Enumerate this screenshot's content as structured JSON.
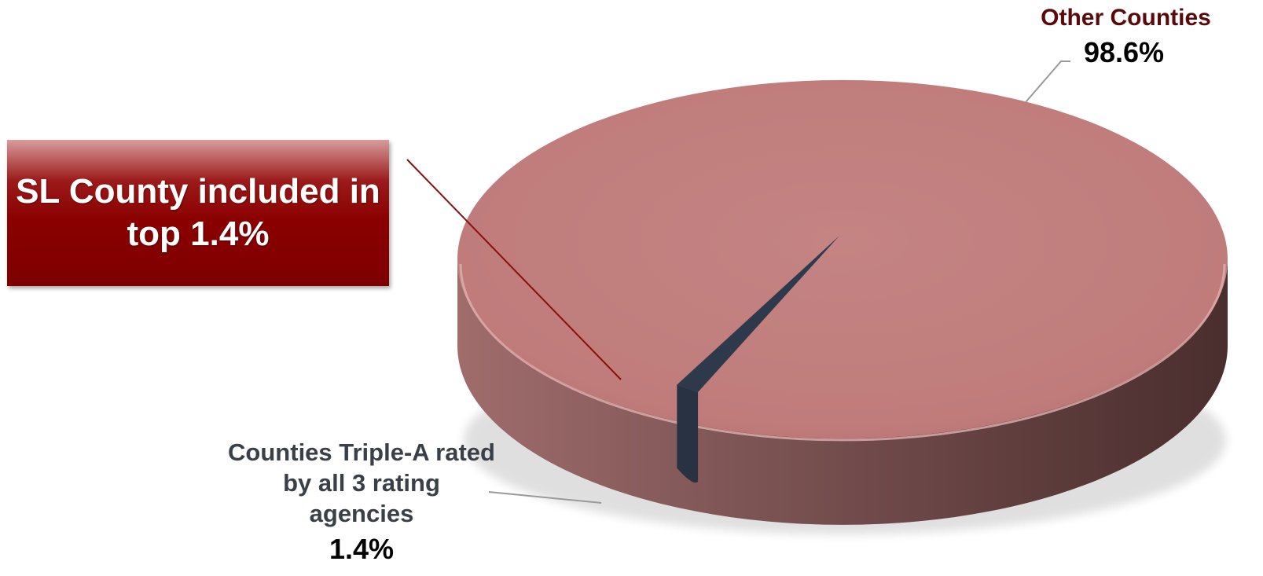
{
  "chart_data": {
    "type": "pie",
    "title": "",
    "slices": [
      {
        "label": "Other Counties",
        "value": 98.6,
        "value_label": "98.6%",
        "color": "#c07f7e"
      },
      {
        "label": "Counties Triple-A rated by all 3 rating agencies",
        "value": 1.4,
        "value_label": "1.4%",
        "color": "#2d3748"
      }
    ],
    "style": "3d",
    "legend": "none"
  },
  "callout": {
    "text": "SL County included in top 1.4%",
    "color": "#8a0000"
  }
}
